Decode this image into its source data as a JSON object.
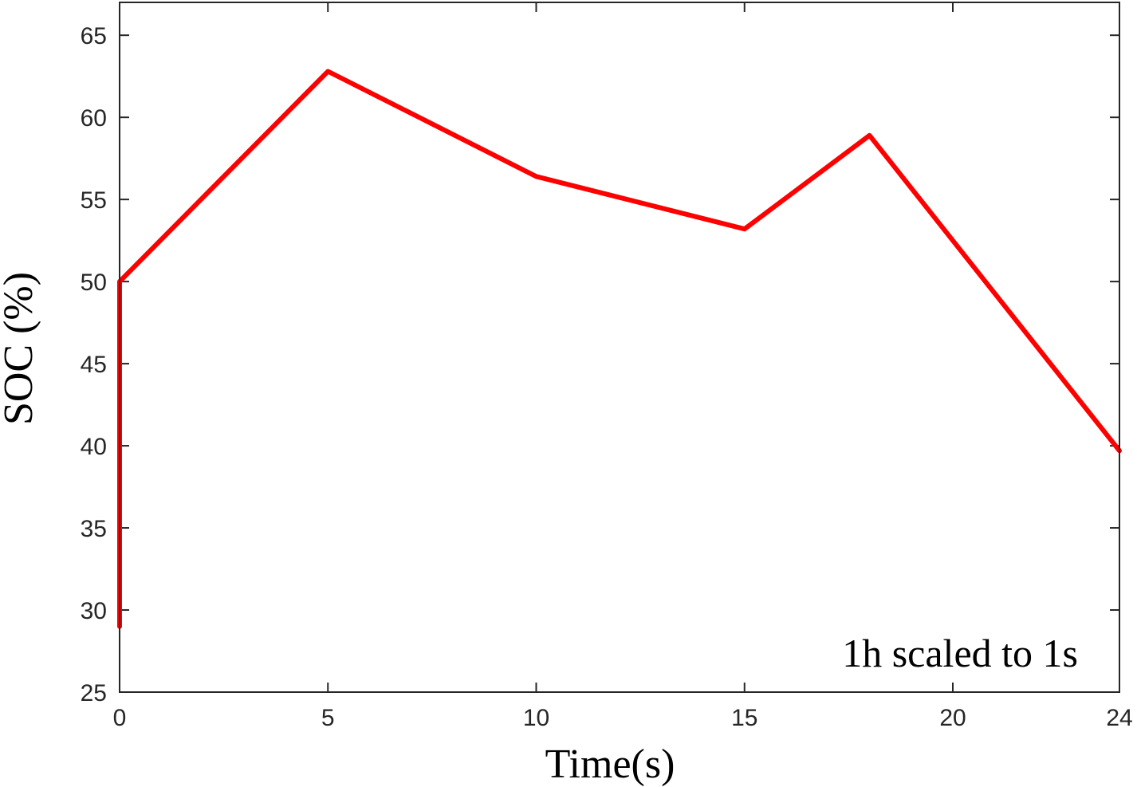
{
  "chart_data": {
    "type": "line",
    "xlabel": "Time(s)",
    "ylabel": "SOC (%)",
    "xlim": [
      0,
      24
    ],
    "ylim": [
      25,
      67
    ],
    "xticks": [
      0,
      5,
      10,
      15,
      20,
      24
    ],
    "yticks": [
      25,
      30,
      35,
      40,
      45,
      50,
      55,
      60,
      65
    ],
    "grid": false,
    "annotation": "1h scaled to 1s",
    "series": [
      {
        "color": "#ff0000",
        "x": [
          0,
          0,
          5,
          10,
          15,
          18,
          24
        ],
        "y": [
          29,
          50,
          62.8,
          56.4,
          53.2,
          58.9,
          39.7
        ]
      }
    ]
  }
}
